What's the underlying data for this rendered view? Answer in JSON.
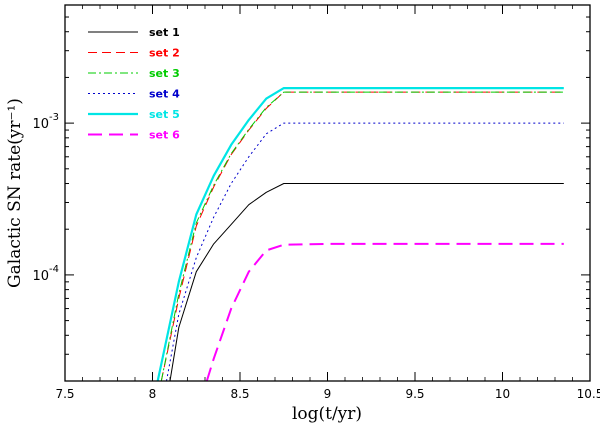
{
  "chart_data": {
    "type": "line",
    "xlabel": "log(t/yr)",
    "ylabel": "Galactic SN rate(yr⁻¹)",
    "xlim": [
      7.5,
      10.5
    ],
    "ylim": [
      2e-05,
      0.006
    ],
    "yscale": "log",
    "xticks": [
      7.5,
      8,
      8.5,
      9,
      9.5,
      10,
      10.5
    ],
    "xtick_labels": [
      "7.5",
      "8",
      "8.5",
      "9",
      "9.5",
      "10",
      "10.5"
    ],
    "yticks_major": [
      0.0001,
      0.001
    ],
    "ytick_labels": [
      {
        "base": "10",
        "exp": "-4"
      },
      {
        "base": "10",
        "exp": "-3"
      }
    ],
    "legend_position": "top-left",
    "series": [
      {
        "name": "set 1",
        "color": "#000000",
        "style": "solid",
        "width": 1,
        "x": [
          8.1,
          8.15,
          8.25,
          8.35,
          8.45,
          8.55,
          8.65,
          8.75,
          9.0,
          10.35
        ],
        "y": [
          2e-05,
          4.5e-05,
          0.000105,
          0.00016,
          0.000215,
          0.00029,
          0.00035,
          0.0004,
          0.0004,
          0.0004
        ]
      },
      {
        "name": "set 2",
        "color": "#ff0000",
        "style": "dash",
        "width": 1,
        "x": [
          8.05,
          8.15,
          8.25,
          8.35,
          8.45,
          8.55,
          8.65,
          8.75,
          9.0,
          10.35
        ],
        "y": [
          2e-05,
          7e-05,
          0.00021,
          0.00038,
          0.00062,
          0.0009,
          0.00125,
          0.0016,
          0.0016,
          0.0016
        ]
      },
      {
        "name": "set 3",
        "color": "#00cc00",
        "style": "dashdot",
        "width": 1,
        "x": [
          8.05,
          8.15,
          8.25,
          8.35,
          8.45,
          8.55,
          8.65,
          8.75,
          9.0,
          10.35
        ],
        "y": [
          2e-05,
          7.5e-05,
          0.00022,
          0.00039,
          0.00063,
          0.00091,
          0.00127,
          0.0016,
          0.0016,
          0.0016
        ]
      },
      {
        "name": "set 4",
        "color": "#0000cc",
        "style": "dot",
        "width": 1,
        "x": [
          8.08,
          8.15,
          8.25,
          8.35,
          8.45,
          8.55,
          8.65,
          8.75,
          9.0,
          10.35
        ],
        "y": [
          2e-05,
          5.5e-05,
          0.00013,
          0.00024,
          0.0004,
          0.0006,
          0.00085,
          0.001,
          0.001,
          0.001
        ]
      },
      {
        "name": "set 5",
        "color": "#00e5e5",
        "style": "solid",
        "width": 2.2,
        "x": [
          8.03,
          8.15,
          8.25,
          8.35,
          8.45,
          8.55,
          8.65,
          8.75,
          9.0,
          10.35
        ],
        "y": [
          2e-05,
          9e-05,
          0.00025,
          0.00045,
          0.00072,
          0.00105,
          0.00145,
          0.0017,
          0.0017,
          0.0017
        ]
      },
      {
        "name": "set 6",
        "color": "#ff00ff",
        "style": "longdash",
        "width": 2,
        "x": [
          8.31,
          8.35,
          8.45,
          8.55,
          8.65,
          8.75,
          9.0,
          10.35
        ],
        "y": [
          2e-05,
          2.8e-05,
          6e-05,
          0.000105,
          0.000145,
          0.000158,
          0.00016,
          0.00016
        ]
      }
    ]
  }
}
